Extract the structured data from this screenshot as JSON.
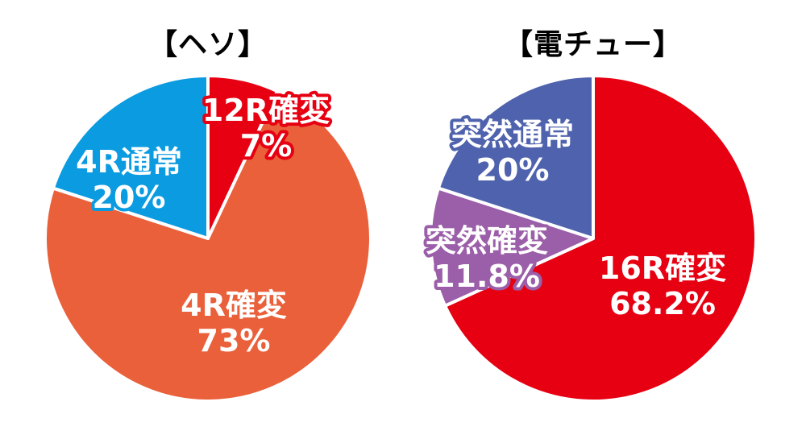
{
  "chart_data": [
    {
      "type": "pie",
      "title": "【ヘソ】",
      "slices": [
        {
          "name": "12R確変",
          "value": 7,
          "label_line1": "12R確変",
          "label_line2": "7%",
          "color": "#e60012",
          "outline": "#e60012"
        },
        {
          "name": "4R確変",
          "value": 73,
          "label_line1": "4R確変",
          "label_line2": "73%",
          "color": "#e9603b",
          "outline": "#e9603b"
        },
        {
          "name": "4R通常",
          "value": 20,
          "label_line1": "4R通常",
          "label_line2": "20%",
          "color": "#0b9be0",
          "outline": "#0b9be0"
        }
      ]
    },
    {
      "type": "pie",
      "title": "【電チュー】",
      "slices": [
        {
          "name": "16R確変",
          "value": 68.2,
          "label_line1": "16R確変",
          "label_line2": "68.2%",
          "color": "#e60012",
          "outline": "#e60012"
        },
        {
          "name": "突然確変",
          "value": 11.8,
          "label_line1": "突然確変",
          "label_line2": "11.8%",
          "color": "#9b5ea8",
          "outline": "#9b5ea8"
        },
        {
          "name": "突然通常",
          "value": 20,
          "label_line1": "突然通常",
          "label_line2": "20%",
          "color": "#4f62ad",
          "outline": "#4f62ad"
        }
      ]
    }
  ]
}
